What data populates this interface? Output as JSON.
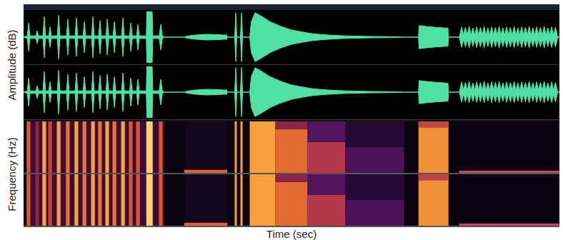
{
  "chart_data": {
    "type": "waveform_spectrogram",
    "xlabel": "Time (sec)",
    "ylabels": [
      "Amplitude (dB)",
      "Frequency (Hz)"
    ],
    "tick_labels": false,
    "channels": 2,
    "xlim": [
      0,
      100
    ],
    "waveform": {
      "ylim": [
        -1,
        1
      ],
      "color": "#4fe0a5",
      "points": [
        [
          0,
          0
        ],
        [
          0.7,
          0.05
        ],
        [
          0.93,
          0.55
        ],
        [
          1.2,
          0.05
        ],
        [
          2.3,
          0.05
        ],
        [
          2.53,
          0.25
        ],
        [
          2.8,
          0.05
        ],
        [
          3.6,
          0.05
        ],
        [
          3.87,
          0.8
        ],
        [
          4.1,
          0.05
        ],
        [
          4.7,
          0.05
        ],
        [
          4.93,
          0.4
        ],
        [
          5.2,
          0.05
        ],
        [
          6.3,
          0.05
        ],
        [
          6.53,
          0.85
        ],
        [
          6.8,
          0.05
        ],
        [
          8.0,
          0.05
        ],
        [
          8.27,
          0.7
        ],
        [
          8.5,
          0.05
        ],
        [
          9.6,
          0.05
        ],
        [
          9.87,
          0.75
        ],
        [
          10.1,
          0.05
        ],
        [
          11.1,
          0.05
        ],
        [
          11.33,
          0.6
        ],
        [
          11.6,
          0.05
        ],
        [
          12.7,
          0.05
        ],
        [
          12.93,
          0.8
        ],
        [
          13.2,
          0.05
        ],
        [
          14.0,
          0.05
        ],
        [
          14.27,
          0.65
        ],
        [
          14.5,
          0.05
        ],
        [
          15.4,
          0.05
        ],
        [
          15.6,
          0.7
        ],
        [
          15.9,
          0.05
        ],
        [
          16.7,
          0.05
        ],
        [
          16.93,
          0.6
        ],
        [
          17.2,
          0.05
        ],
        [
          18.3,
          0.05
        ],
        [
          18.53,
          0.75
        ],
        [
          18.8,
          0.05
        ],
        [
          19.8,
          0.05
        ],
        [
          20.0,
          0.55
        ],
        [
          20.3,
          0.05
        ],
        [
          21.1,
          0.05
        ],
        [
          21.33,
          0.5
        ],
        [
          21.6,
          0.05
        ],
        [
          22.9,
          0.05
        ],
        [
          23.0,
          1.0
        ],
        [
          24.0,
          1.0
        ],
        [
          24.1,
          0.05
        ],
        [
          25.3,
          0.05
        ],
        [
          25.6,
          0.5
        ],
        [
          25.9,
          0.05
        ],
        [
          26.3,
          0
        ],
        [
          30.0,
          0
        ],
        [
          30.5,
          0.04
        ],
        [
          32,
          0.08
        ],
        [
          34,
          0.11
        ],
        [
          36,
          0.1
        ],
        [
          37.5,
          0.08
        ],
        [
          37.9,
          0.09
        ],
        [
          38.0,
          0
        ],
        [
          39.4,
          0
        ],
        [
          39.6,
          0.95
        ],
        [
          39.8,
          0
        ],
        [
          40.47,
          0
        ],
        [
          40.67,
          0.95
        ],
        [
          40.87,
          0
        ],
        [
          42.2,
          0
        ],
        [
          42.5,
          0.6
        ],
        [
          43.2,
          0.95
        ],
        [
          44.5,
          0.8
        ],
        [
          46,
          0.6
        ],
        [
          48,
          0.42
        ],
        [
          50,
          0.28
        ],
        [
          52,
          0.2
        ],
        [
          54,
          0.13
        ],
        [
          57,
          0.08
        ],
        [
          60,
          0.05
        ],
        [
          64,
          0.03
        ],
        [
          68,
          0.02
        ],
        [
          70,
          0.01
        ],
        [
          71,
          0
        ],
        [
          73.7,
          0
        ],
        [
          73.8,
          0.45
        ],
        [
          75,
          0.42
        ],
        [
          77,
          0.38
        ],
        [
          79.2,
          0.35
        ],
        [
          79.3,
          0
        ],
        [
          81.3,
          0
        ],
        [
          81.4,
          0.08
        ],
        [
          81.75,
          0.4
        ],
        [
          82.1,
          0.08
        ],
        [
          82.45,
          0.38
        ],
        [
          82.8,
          0.08
        ],
        [
          83.15,
          0.42
        ],
        [
          83.5,
          0.08
        ],
        [
          83.85,
          0.36
        ],
        [
          84.2,
          0.08
        ],
        [
          84.55,
          0.4
        ],
        [
          84.9,
          0.08
        ],
        [
          85.25,
          0.38
        ],
        [
          85.6,
          0.08
        ],
        [
          85.95,
          0.42
        ],
        [
          86.3,
          0.08
        ],
        [
          86.65,
          0.36
        ],
        [
          87.0,
          0.08
        ],
        [
          87.35,
          0.4
        ],
        [
          87.7,
          0.08
        ],
        [
          88.05,
          0.38
        ],
        [
          88.4,
          0.08
        ],
        [
          88.75,
          0.42
        ],
        [
          89.1,
          0.08
        ],
        [
          89.45,
          0.36
        ],
        [
          89.8,
          0.08
        ],
        [
          90.15,
          0.4
        ],
        [
          90.5,
          0.08
        ],
        [
          90.85,
          0.38
        ],
        [
          91.2,
          0.08
        ],
        [
          91.55,
          0.42
        ],
        [
          91.9,
          0.08
        ],
        [
          92.25,
          0.36
        ],
        [
          92.6,
          0.08
        ],
        [
          92.95,
          0.4
        ],
        [
          93.3,
          0.08
        ],
        [
          93.65,
          0.38
        ],
        [
          94.0,
          0.08
        ],
        [
          94.35,
          0.42
        ],
        [
          94.7,
          0.08
        ],
        [
          95.05,
          0.36
        ],
        [
          95.4,
          0.08
        ],
        [
          95.75,
          0.4
        ],
        [
          96.1,
          0.08
        ],
        [
          96.45,
          0.38
        ],
        [
          96.8,
          0.08
        ],
        [
          97.15,
          0.42
        ],
        [
          97.5,
          0.08
        ],
        [
          97.85,
          0.36
        ],
        [
          98.2,
          0.08
        ],
        [
          98.55,
          0.4
        ],
        [
          98.9,
          0.08
        ],
        [
          99.25,
          0.38
        ],
        [
          99.6,
          0.08
        ],
        [
          99.7,
          0
        ],
        [
          100,
          0
        ]
      ]
    },
    "spectrogram": {
      "ylim": [
        0,
        1
      ],
      "color": "#0a0410",
      "regions": [
        {
          "start": 0.5,
          "end": 26.3,
          "low": 0,
          "high": 1,
          "color": "#3a0c3c"
        },
        {
          "start": 0.58,
          "end": 1.28,
          "low": 0,
          "high": 1,
          "color": "#d9572e"
        },
        {
          "start": 2.2,
          "end": 2.9,
          "low": 0,
          "high": 1,
          "color": "#8e2040"
        },
        {
          "start": 3.5,
          "end": 4.2,
          "low": 0,
          "high": 1,
          "color": "#f7a13b"
        },
        {
          "start": 4.6,
          "end": 5.3,
          "low": 0,
          "high": 1,
          "color": "#c8402f"
        },
        {
          "start": 6.2,
          "end": 6.9,
          "low": 0,
          "high": 1,
          "color": "#f7a13b"
        },
        {
          "start": 7.9,
          "end": 8.6,
          "low": 0,
          "high": 1,
          "color": "#e8742f"
        },
        {
          "start": 9.5,
          "end": 10.2,
          "low": 0,
          "high": 1,
          "color": "#f7a13b"
        },
        {
          "start": 11.0,
          "end": 11.7,
          "low": 0,
          "high": 1,
          "color": "#e8742f"
        },
        {
          "start": 12.6,
          "end": 13.3,
          "low": 0,
          "high": 1,
          "color": "#f7a13b"
        },
        {
          "start": 13.9,
          "end": 14.6,
          "low": 0,
          "high": 1,
          "color": "#e8742f"
        },
        {
          "start": 15.25,
          "end": 15.95,
          "low": 0,
          "high": 1,
          "color": "#f7a13b"
        },
        {
          "start": 16.6,
          "end": 17.3,
          "low": 0,
          "high": 1,
          "color": "#e8742f"
        },
        {
          "start": 18.2,
          "end": 18.9,
          "low": 0,
          "high": 1,
          "color": "#f7a13b"
        },
        {
          "start": 19.65,
          "end": 20.35,
          "low": 0,
          "high": 1,
          "color": "#d9572e"
        },
        {
          "start": 21.0,
          "end": 21.7,
          "low": 0,
          "high": 1,
          "color": "#d9572e"
        },
        {
          "start": 22.9,
          "end": 24.1,
          "low": 0,
          "high": 1,
          "color": "#ffd166"
        },
        {
          "start": 25.25,
          "end": 25.95,
          "low": 0,
          "high": 1,
          "color": "#d9572e"
        },
        {
          "start": 30.0,
          "end": 38.0,
          "low": 0.08,
          "high": 1,
          "color": "#14081e"
        },
        {
          "start": 30.0,
          "end": 38.0,
          "low": 0,
          "high": 0.06,
          "color": "#e0603a"
        },
        {
          "start": 39.4,
          "end": 39.8,
          "low": 0,
          "high": 1,
          "color": "#f7a13b"
        },
        {
          "start": 40.47,
          "end": 40.87,
          "low": 0,
          "high": 1,
          "color": "#f7a13b"
        },
        {
          "start": 42.2,
          "end": 47,
          "low": 0,
          "high": 1,
          "color": "#f5a03c"
        },
        {
          "start": 47,
          "end": 53,
          "low": 0,
          "high": 0.85,
          "color": "#e26a33"
        },
        {
          "start": 47,
          "end": 53,
          "low": 0.85,
          "high": 1,
          "color": "#8a2448"
        },
        {
          "start": 53,
          "end": 60,
          "low": 0,
          "high": 0.6,
          "color": "#b2384a"
        },
        {
          "start": 53,
          "end": 60,
          "low": 0.6,
          "high": 1,
          "color": "#52145a"
        },
        {
          "start": 60,
          "end": 71,
          "low": 0,
          "high": 0.5,
          "color": "#4a1258"
        },
        {
          "start": 60,
          "end": 71,
          "low": 0.5,
          "high": 1,
          "color": "#260a36"
        },
        {
          "start": 73.7,
          "end": 79.3,
          "low": 0,
          "high": 1,
          "color": "#f0903a"
        },
        {
          "start": 73.7,
          "end": 79.3,
          "low": 0.88,
          "high": 1,
          "color": "#c04444"
        },
        {
          "start": 81.3,
          "end": 100,
          "low": 0,
          "high": 0.04,
          "color": "#d0406a"
        }
      ]
    }
  }
}
